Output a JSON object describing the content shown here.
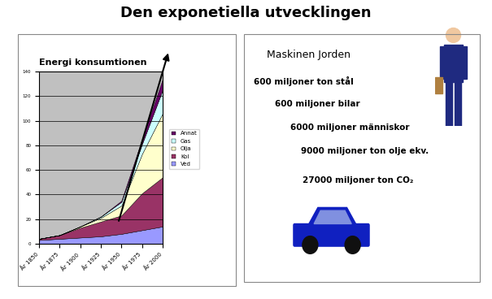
{
  "title": "Den exponetiella utvecklingen",
  "chart_data": {
    "type": "area",
    "title": "Energi konsumtionen",
    "stacked": true,
    "categories": [
      "År 1850",
      "År 1875",
      "År 1900",
      "År 1925",
      "År 1950",
      "År 1975",
      "År 2000"
    ],
    "series": [
      {
        "name": "Ved",
        "color": "#9999ff",
        "values": [
          3,
          4,
          5,
          6,
          8,
          11,
          14
        ]
      },
      {
        "name": "Kol",
        "color": "#993366",
        "values": [
          1,
          3,
          8,
          12,
          15,
          30,
          40
        ]
      },
      {
        "name": "Olja",
        "color": "#ffffcc",
        "values": [
          0,
          0,
          1,
          3,
          8,
          32,
          52
        ]
      },
      {
        "name": "Gas",
        "color": "#ccffff",
        "values": [
          0,
          0,
          0,
          1,
          3,
          8,
          19
        ]
      },
      {
        "name": "Annat",
        "color": "#660066",
        "values": [
          0,
          0,
          0,
          0,
          1,
          4,
          9
        ]
      }
    ],
    "ylim": [
      0,
      140
    ],
    "yticks": [
      0,
      20,
      40,
      60,
      80,
      100,
      120,
      140
    ],
    "grid": true,
    "legend": "right"
  },
  "panel": {
    "title": "Maskinen Jorden",
    "lines": [
      "600 miljoner ton stål",
      "600 miljoner bilar",
      "6000 miljoner människor",
      "9000 miljoner ton olje ekv.",
      "27000 miljoner ton CO₂"
    ]
  }
}
